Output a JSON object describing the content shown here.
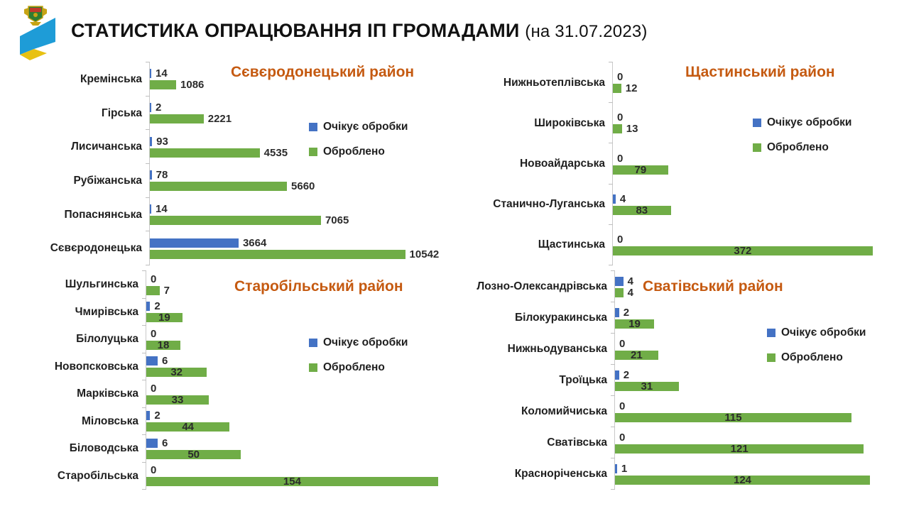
{
  "header": {
    "title": "СТАТИСТИКА ОПРАЦЮВАННЯ ІП ГРОМАДАМИ",
    "date_suffix": "(на 31.07.2023)",
    "logo_icon": "coat-of-arms-with-flag-swoosh"
  },
  "colors": {
    "waiting": "#4472C4",
    "processed": "#70AD47",
    "district_title": "#C55A11",
    "axis": "#C9C9C9"
  },
  "legend": {
    "waiting_label": "Очікує обробки",
    "processed_label": "Оброблено"
  },
  "chart_data": [
    {
      "type": "bar",
      "orientation": "horizontal",
      "title": "Сєвєродонецький район",
      "categories": [
        "Кремінська",
        "Гірська",
        "Лисичанська",
        "Рубіжанська",
        "Попаснянська",
        "Сєвєродонецька"
      ],
      "series": [
        {
          "name": "Очікує обробки",
          "color": "#4472C4",
          "values": [
            14,
            2,
            93,
            78,
            14,
            3664
          ]
        },
        {
          "name": "Оброблено",
          "color": "#70AD47",
          "values": [
            1086,
            2221,
            4535,
            5660,
            7065,
            10542
          ]
        }
      ],
      "xlim": [
        0,
        10542
      ],
      "grid": false,
      "legend_position": "right-inside",
      "layout": {
        "max_bar_pct": 85,
        "green_label_mode": "outside"
      }
    },
    {
      "type": "bar",
      "orientation": "horizontal",
      "title": "Щастинський район",
      "categories": [
        "Нижньотеплівська",
        "Широківська",
        "Новоайдарська",
        "Станично-Луганська",
        "Щастинська"
      ],
      "series": [
        {
          "name": "Очікує обробки",
          "color": "#4472C4",
          "values": [
            0,
            0,
            0,
            4,
            0
          ]
        },
        {
          "name": "Оброблено",
          "color": "#70AD47",
          "values": [
            12,
            13,
            79,
            83,
            372
          ]
        }
      ],
      "xlim": [
        0,
        372
      ],
      "grid": false,
      "legend_position": "right-inside",
      "layout": {
        "max_bar_pct": 89,
        "green_label_mode": "auto"
      }
    },
    {
      "type": "bar",
      "orientation": "horizontal",
      "title": "Старобільський район",
      "categories": [
        "Шульгинська",
        "Чмирівська",
        "Білолуцька",
        "Новопсковська",
        "Марківська",
        "Міловська",
        "Біловодська",
        "Старобільська"
      ],
      "series": [
        {
          "name": "Очікує обробки",
          "color": "#4472C4",
          "values": [
            0,
            2,
            0,
            6,
            0,
            2,
            6,
            0
          ]
        },
        {
          "name": "Оброблено",
          "color": "#70AD47",
          "values": [
            7,
            19,
            18,
            32,
            33,
            44,
            50,
            154
          ]
        }
      ],
      "xlim": [
        0,
        154
      ],
      "grid": false,
      "legend_position": "right-inside",
      "layout": {
        "max_bar_pct": 96,
        "green_label_mode": "auto"
      }
    },
    {
      "type": "bar",
      "orientation": "horizontal",
      "title": "Сватівський район",
      "categories": [
        "Лозно-Олександрівська",
        "Білокуракинська",
        "Нижньодуванська",
        "Троїцька",
        "Коломийчиська",
        "Сватівська",
        "Красноріченська"
      ],
      "series": [
        {
          "name": "Очікує обробки",
          "color": "#4472C4",
          "values": [
            4,
            2,
            0,
            2,
            0,
            0,
            1
          ]
        },
        {
          "name": "Оброблено",
          "color": "#70AD47",
          "values": [
            4,
            19,
            21,
            31,
            115,
            121,
            124
          ]
        }
      ],
      "xlim": [
        0,
        124
      ],
      "grid": false,
      "legend_position": "right-inside",
      "layout": {
        "max_bar_pct": 88,
        "green_label_mode": "auto"
      }
    }
  ]
}
